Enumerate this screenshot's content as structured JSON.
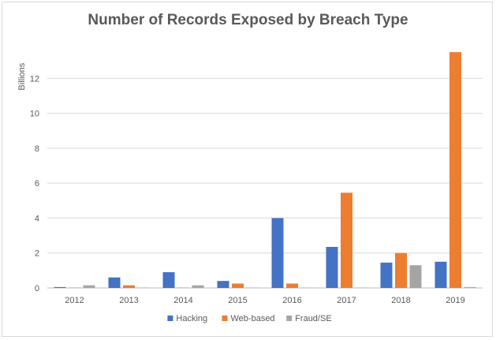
{
  "chart_data": {
    "type": "bar",
    "title": "Number of Records Exposed by Breach Type",
    "xlabel": "",
    "ylabel": "Billions",
    "ylim": [
      0,
      14
    ],
    "yticks": [
      0,
      2,
      4,
      6,
      8,
      10,
      12
    ],
    "grid": true,
    "legend_position": "bottom",
    "categories": [
      "2012",
      "2013",
      "2014",
      "2015",
      "2016",
      "2017",
      "2018",
      "2019"
    ],
    "series": [
      {
        "name": "Hacking",
        "color": "#4472c4",
        "values": [
          0.05,
          0.6,
          0.9,
          0.4,
          4.0,
          2.35,
          1.45,
          1.5
        ]
      },
      {
        "name": "Web-based",
        "color": "#ed7d31",
        "values": [
          0.02,
          0.15,
          0.02,
          0.25,
          0.25,
          5.45,
          2.0,
          13.5
        ]
      },
      {
        "name": "Fraud/SE",
        "color": "#a5a5a5",
        "values": [
          0.15,
          0.02,
          0.15,
          0.02,
          0.02,
          0.02,
          1.3,
          0.05
        ]
      }
    ]
  }
}
